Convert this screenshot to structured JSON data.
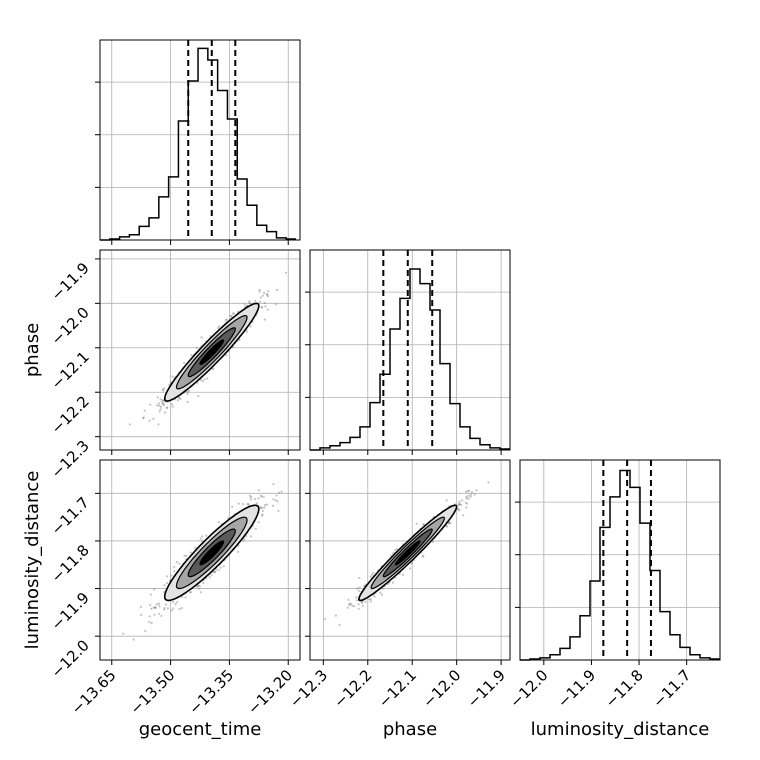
{
  "chart_data": {
    "type": "corner",
    "parameters": [
      {
        "name": "geocent_time",
        "label": "geocent_time",
        "range": [
          -13.68,
          -13.17
        ],
        "ticks": [
          -13.65,
          -13.5,
          -13.35,
          -13.2
        ],
        "tick_labels": [
          "−13.65",
          "−13.50",
          "−13.35",
          "−13.20"
        ],
        "quantiles": [
          -13.455,
          -13.395,
          -13.335
        ]
      },
      {
        "name": "phase",
        "label": "phase",
        "range": [
          -12.33,
          -11.88
        ],
        "ticks": [
          -12.3,
          -12.2,
          -12.1,
          -12.0,
          -11.9
        ],
        "tick_labels": [
          "−12.3",
          "−12.2",
          "−12.1",
          "−12.0",
          "−11.9"
        ],
        "quantiles": [
          -12.165,
          -12.11,
          -12.055
        ]
      },
      {
        "name": "luminosity_distance",
        "label": "luminosity_distance",
        "range": [
          -12.05,
          -11.63
        ],
        "ticks": [
          -12.0,
          -11.9,
          -11.8,
          -11.7
        ],
        "tick_labels": [
          "−12.0",
          "−11.9",
          "−11.8",
          "−11.7"
        ],
        "quantiles": [
          -11.875,
          -11.825,
          -11.775
        ]
      }
    ],
    "histograms": [
      {
        "param": "geocent_time",
        "bin_edges": [
          -13.68,
          -13.655,
          -13.63,
          -13.605,
          -13.58,
          -13.555,
          -13.53,
          -13.505,
          -13.48,
          -13.455,
          -13.43,
          -13.405,
          -13.38,
          -13.355,
          -13.33,
          -13.305,
          -13.28,
          -13.255,
          -13.23,
          -13.205,
          -13.18
        ],
        "counts": [
          0,
          1,
          3,
          5,
          13,
          21,
          41,
          60,
          113,
          151,
          182,
          171,
          142,
          115,
          58,
          33,
          14,
          8,
          2,
          1
        ],
        "yticks": [
          50,
          100,
          150
        ]
      },
      {
        "param": "phase",
        "bin_edges": [
          -12.33,
          -12.3075,
          -12.285,
          -12.2625,
          -12.24,
          -12.2175,
          -12.195,
          -12.1725,
          -12.15,
          -12.1275,
          -12.105,
          -12.0825,
          -12.06,
          -12.0375,
          -12.015,
          -11.9925,
          -11.97,
          -11.9475,
          -11.925,
          -11.9025,
          -11.88
        ],
        "counts": [
          0,
          2,
          4,
          7,
          12,
          22,
          45,
          72,
          115,
          144,
          172,
          158,
          133,
          82,
          44,
          22,
          11,
          5,
          2,
          1
        ],
        "yticks": [
          50,
          100,
          150
        ]
      },
      {
        "param": "luminosity_distance",
        "bin_edges": [
          -12.05,
          -12.029,
          -12.008,
          -11.987,
          -11.966,
          -11.945,
          -11.924,
          -11.903,
          -11.882,
          -11.861,
          -11.84,
          -11.819,
          -11.798,
          -11.777,
          -11.756,
          -11.735,
          -11.714,
          -11.693,
          -11.672,
          -11.651,
          -11.63
        ],
        "counts": [
          0,
          1,
          2,
          5,
          11,
          22,
          42,
          75,
          126,
          155,
          180,
          164,
          130,
          85,
          46,
          24,
          12,
          5,
          2,
          1
        ],
        "yticks": [
          50,
          100,
          150
        ]
      }
    ],
    "joint": [
      {
        "x": "geocent_time",
        "y": "phase",
        "mean": [
          -13.395,
          -12.11
        ],
        "sd": [
          0.06,
          0.055
        ],
        "rho": 0.95
      },
      {
        "x": "geocent_time",
        "y": "luminosity_distance",
        "mean": [
          -13.395,
          -11.825
        ],
        "sd": [
          0.06,
          0.05
        ],
        "rho": 0.92
      },
      {
        "x": "phase",
        "y": "luminosity_distance",
        "mean": [
          -12.11,
          -11.825
        ],
        "sd": [
          0.055,
          0.05
        ],
        "rho": 0.97
      }
    ],
    "contour_levels_sigma": [
      0.5,
      1.0,
      1.5,
      2.0
    ],
    "grid": true,
    "colors": {
      "line": "#000000",
      "grid": "#b0b0b0",
      "scatter": "#7a7a7a",
      "background": "#ffffff"
    }
  }
}
